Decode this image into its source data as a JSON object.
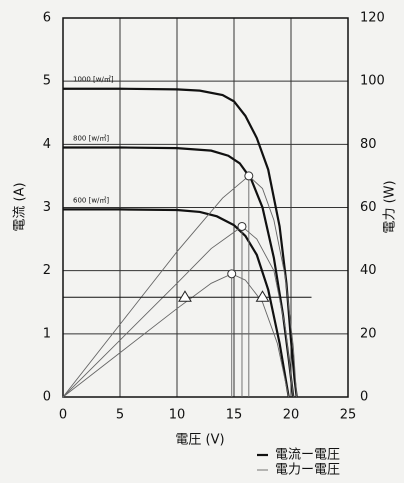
{
  "chart_data": {
    "type": "line",
    "xlabel": "電圧 (V)",
    "ylabel": "電流 (A)",
    "y2label": "電力 (W)",
    "xlim": [
      0,
      25
    ],
    "xticks": [
      0,
      5,
      10,
      15,
      20,
      25
    ],
    "ylim": [
      0,
      6
    ],
    "yticks": [
      0,
      1,
      2,
      3,
      4,
      5,
      6
    ],
    "y2lim": [
      0,
      120
    ],
    "y2ticks": [
      0,
      20,
      40,
      60,
      80,
      100,
      120
    ],
    "grid": true,
    "legend": [
      {
        "label": "電流ー電圧",
        "width": 2.2,
        "color": "#111111"
      },
      {
        "label": "電力ー電圧",
        "width": 0.9,
        "color": "#666666"
      }
    ],
    "series": [
      {
        "label": "1000 [w/㎡]",
        "axis": "y",
        "color": "#111111",
        "width": 2.2,
        "x": [
          0,
          5,
          10,
          12,
          14,
          15,
          16,
          17,
          18,
          19,
          19.6,
          20,
          20.3,
          20.5
        ],
        "values": [
          4.88,
          4.88,
          4.87,
          4.85,
          4.78,
          4.68,
          4.45,
          4.1,
          3.6,
          2.7,
          1.8,
          0.9,
          0.3,
          0
        ]
      },
      {
        "label": "800 [w/㎡]",
        "axis": "y",
        "color": "#111111",
        "width": 2.2,
        "x": [
          0,
          5,
          10,
          13,
          14.5,
          15.5,
          16.5,
          17.5,
          18.5,
          19.3,
          19.8,
          20.2
        ],
        "values": [
          3.95,
          3.95,
          3.94,
          3.9,
          3.82,
          3.7,
          3.45,
          3.0,
          2.2,
          1.3,
          0.6,
          0
        ]
      },
      {
        "label": "600 [w/㎡]",
        "axis": "y",
        "color": "#111111",
        "width": 2.2,
        "x": [
          0,
          5,
          10,
          12,
          13.5,
          15,
          16,
          17,
          18,
          19,
          19.8
        ],
        "values": [
          2.97,
          2.97,
          2.96,
          2.93,
          2.86,
          2.72,
          2.55,
          2.25,
          1.7,
          0.85,
          0
        ]
      },
      {
        "axis": "y2",
        "color": "#666666",
        "width": 0.9,
        "x": [
          0,
          5,
          10,
          14,
          16.3,
          17.5,
          18.5,
          19.5,
          20.2,
          20.5
        ],
        "values": [
          0,
          23,
          46,
          63,
          70,
          66,
          56,
          38,
          16,
          0
        ],
        "peak": [
          16.3,
          70
        ]
      },
      {
        "axis": "y2",
        "color": "#666666",
        "width": 0.9,
        "x": [
          0,
          5,
          10,
          13,
          15.7,
          17,
          18.5,
          19.5,
          20.2
        ],
        "values": [
          0,
          18,
          36,
          47,
          54,
          50,
          40,
          22,
          0
        ],
        "peak": [
          15.7,
          54
        ]
      },
      {
        "axis": "y2",
        "color": "#666666",
        "width": 0.9,
        "x": [
          0,
          5,
          10,
          13,
          14.8,
          16,
          17.5,
          18.8,
          19.8
        ],
        "values": [
          0,
          14,
          28,
          36,
          39,
          37,
          30,
          17,
          0
        ],
        "peak": [
          14.8,
          39
        ]
      }
    ],
    "hline": {
      "y": 1.58,
      "x": [
        0,
        21.8
      ]
    },
    "triangles": {
      "x": [
        10.7,
        17.5
      ],
      "y": [
        1.58,
        1.58
      ]
    }
  }
}
